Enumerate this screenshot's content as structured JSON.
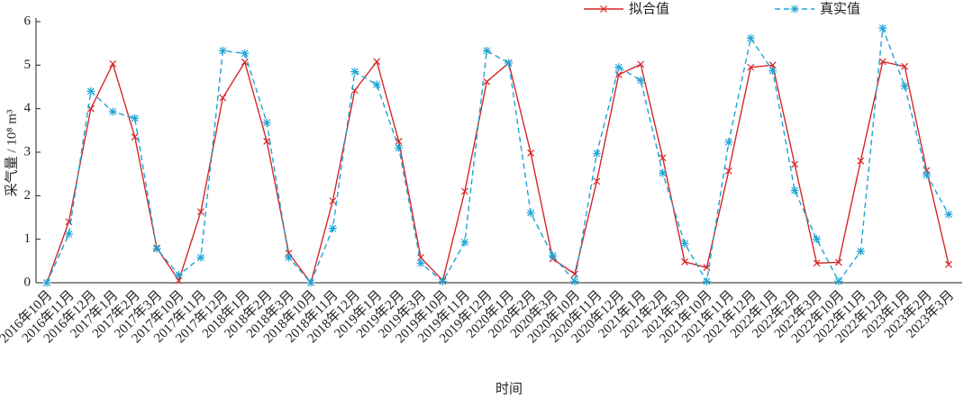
{
  "chart_data": {
    "type": "line",
    "y_label": "采气量 / 10⁸ m³",
    "x_label": "时间",
    "categories": [
      "2016年10月",
      "2016年11月",
      "2016年12月",
      "2017年1月",
      "2017年2月",
      "2017年3月",
      "2017年10月",
      "2017年11月",
      "2017年12月",
      "2018年1月",
      "2018年2月",
      "2018年3月",
      "2018年10月",
      "2018年11月",
      "2018年12月",
      "2019年1月",
      "2019年2月",
      "2019年3月",
      "2019年10月",
      "2019年11月",
      "2019年12月",
      "2020年1月",
      "2020年2月",
      "2020年3月",
      "2020年10月",
      "2020年11月",
      "2020年12月",
      "2021年1月",
      "2021年2月",
      "2021年3月",
      "2021年10月",
      "2021年11月",
      "2021年12月",
      "2022年1月",
      "2022年2月",
      "2022年3月",
      "2022年10月",
      "2022年11月",
      "2022年12月",
      "2023年1月",
      "2023年2月",
      "2023年3月"
    ],
    "series": [
      {
        "name": "拟合值",
        "color": "#d62728",
        "dash": false,
        "marker": "x",
        "values": [
          0,
          1.4,
          4.0,
          5.03,
          3.35,
          0.8,
          0.05,
          1.63,
          4.25,
          5.07,
          3.25,
          0.68,
          0.0,
          1.88,
          4.42,
          5.08,
          3.25,
          0.58,
          0.05,
          2.1,
          4.62,
          5.05,
          2.98,
          0.55,
          0.2,
          2.33,
          4.78,
          5.02,
          2.87,
          0.48,
          0.35,
          2.57,
          4.95,
          5.0,
          2.72,
          0.45,
          0.47,
          2.8,
          5.08,
          4.97,
          2.58,
          0.42
        ]
      },
      {
        "name": "真实值",
        "color": "#1fa3d6",
        "dash": true,
        "marker": "asterisk",
        "values": [
          0,
          1.12,
          4.4,
          3.93,
          3.78,
          0.78,
          0.18,
          0.58,
          5.33,
          5.27,
          3.68,
          0.58,
          0.0,
          1.25,
          4.85,
          4.55,
          3.1,
          0.45,
          0.03,
          0.93,
          5.33,
          5.05,
          1.6,
          0.62,
          0.03,
          2.97,
          4.95,
          4.65,
          2.52,
          0.9,
          0.03,
          3.23,
          5.62,
          4.87,
          2.12,
          1.0,
          0.03,
          0.72,
          5.85,
          4.52,
          2.48,
          1.57
        ]
      }
    ],
    "ylim": [
      0,
      6
    ],
    "yticks": [
      0,
      1,
      2,
      3,
      4,
      5,
      6
    ],
    "legend": "top-right"
  }
}
